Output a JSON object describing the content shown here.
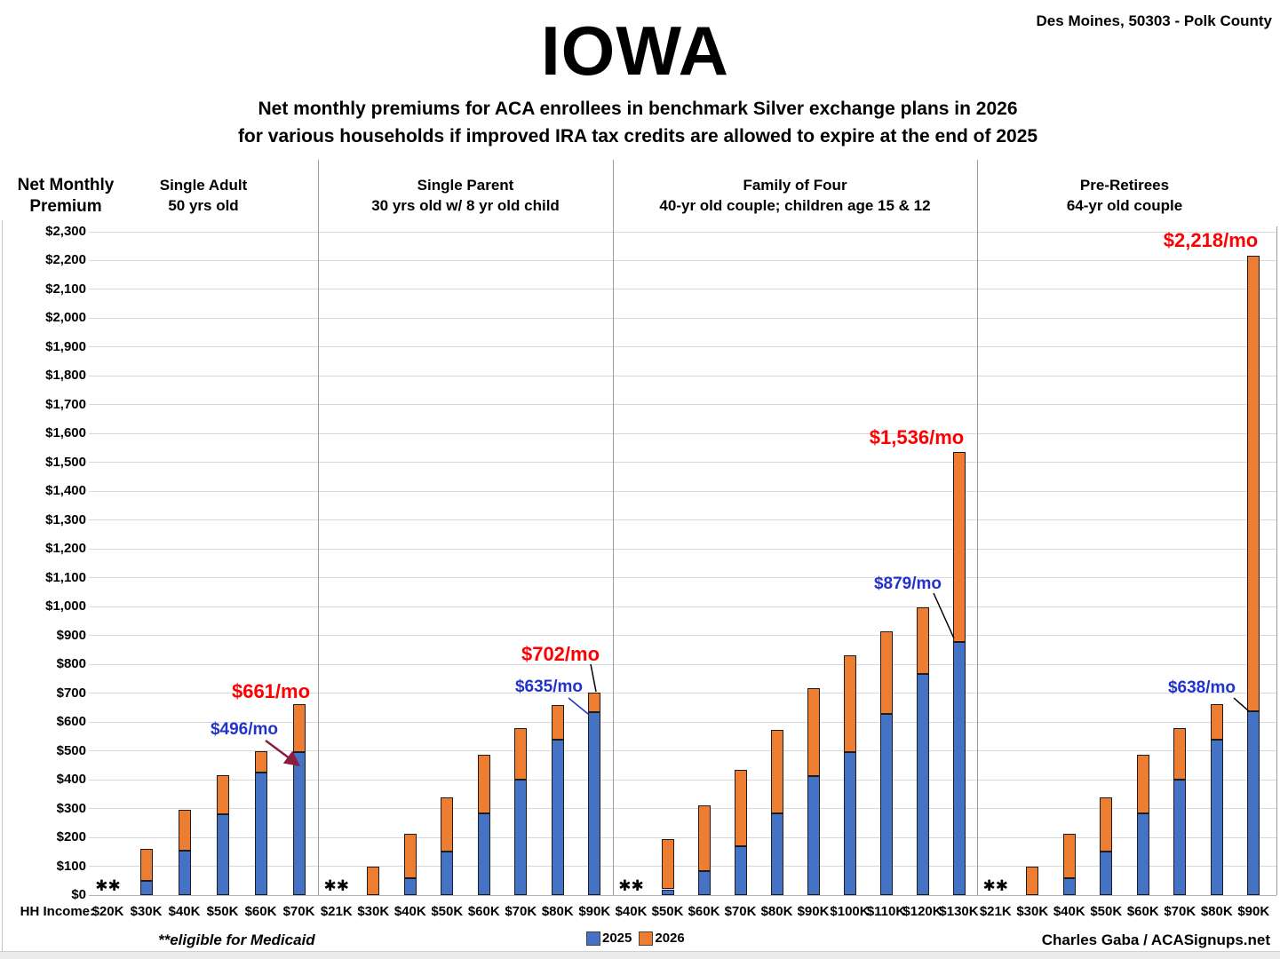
{
  "header": {
    "location": "Des Moines, 50303 - Polk County",
    "title": "IOWA",
    "subtitle_line1": "Net monthly premiums for ACA enrollees in benchmark Silver exchange plans in 2026",
    "subtitle_line2": "for various households if improved IRA tax credits are allowed to expire at the end of 2025"
  },
  "axis": {
    "y_header_line1": "Net Monthly",
    "y_header_line2": "Premium",
    "x_header": "HH Income:",
    "yticks": [
      "$0",
      "$100",
      "$200",
      "$300",
      "$400",
      "$500",
      "$600",
      "$700",
      "$800",
      "$900",
      "$1,000",
      "$1,100",
      "$1,200",
      "$1,300",
      "$1,400",
      "$1,500",
      "$1,600",
      "$1,700",
      "$1,800",
      "$1,900",
      "$2,000",
      "$2,100",
      "$2,200",
      "$2,300"
    ]
  },
  "footer": {
    "medicaid_note": "**eligible for Medicaid",
    "credit": "Charles Gaba / ACASignups.net"
  },
  "legend": [
    {
      "label": "2025",
      "color": "#4472C4"
    },
    {
      "label": "2026",
      "color": "#ED7D31"
    }
  ],
  "colors": {
    "bar_2025": "#4472C4",
    "bar_2026": "#ED7D31",
    "annotation_red": "#FF0000",
    "annotation_blue": "#2233CC",
    "gridline": "#D9D9D9",
    "divider": "#9B9B9B"
  },
  "chart_data": {
    "type": "bar",
    "stacked": true,
    "unit": "US$ per month",
    "ylabel": "Net Monthly Premium",
    "xlabel": "HH Income",
    "ylim": [
      0,
      2300
    ],
    "ytick_interval": 100,
    "grid": true,
    "legend_position": "bottom-center",
    "series_names": [
      "2025",
      "2026"
    ],
    "note": "values_2026_total are total bar heights; orange segment = 2026 total minus 2025 value",
    "medicaid_marker": "✱✱",
    "panels": [
      {
        "title_line1": "Single Adult",
        "title_line2": "50 yrs old",
        "categories": [
          "$20K",
          "$30K",
          "$40K",
          "$50K",
          "$60K",
          "$70K"
        ],
        "medicaid_eligible": [
          true,
          false,
          false,
          false,
          false,
          false
        ],
        "values_2025": [
          null,
          48,
          153,
          280,
          425,
          496
        ],
        "values_2026_total": [
          null,
          160,
          297,
          415,
          498,
          661
        ],
        "annotations": [
          {
            "text": "$661/mo",
            "kind": "red"
          },
          {
            "text": "$496/mo",
            "kind": "blue"
          }
        ]
      },
      {
        "title_line1": "Single Parent",
        "title_line2": "30 yrs old w/ 8 yr old child",
        "categories": [
          "$21K",
          "$30K",
          "$40K",
          "$50K",
          "$60K",
          "$70K",
          "$80K",
          "$90K"
        ],
        "medicaid_eligible": [
          true,
          false,
          false,
          false,
          false,
          false,
          false,
          false
        ],
        "values_2025": [
          null,
          0,
          57,
          150,
          283,
          400,
          540,
          635
        ],
        "values_2026_total": [
          null,
          100,
          212,
          340,
          485,
          580,
          660,
          702
        ],
        "annotations": [
          {
            "text": "$702/mo",
            "kind": "red"
          },
          {
            "text": "$635/mo",
            "kind": "blue"
          }
        ]
      },
      {
        "title_line1": "Family of Four",
        "title_line2": "40-yr old couple; children age 15 & 12",
        "categories": [
          "$40K",
          "$50K",
          "$60K",
          "$70K",
          "$80K",
          "$90K",
          "$100K",
          "$110K",
          "$120K",
          "$130K"
        ],
        "medicaid_eligible": [
          true,
          false,
          false,
          false,
          false,
          false,
          false,
          false,
          false,
          false
        ],
        "values_2025": [
          null,
          20,
          83,
          170,
          282,
          412,
          497,
          628,
          767,
          879
        ],
        "values_2026_total": [
          null,
          193,
          310,
          433,
          573,
          718,
          830,
          915,
          997,
          1536
        ],
        "annotations": [
          {
            "text": "$1,536/mo",
            "kind": "red"
          },
          {
            "text": "$879/mo",
            "kind": "blue"
          }
        ]
      },
      {
        "title_line1": "Pre-Retirees",
        "title_line2": "64-yr old couple",
        "categories": [
          "$21K",
          "$30K",
          "$40K",
          "$50K",
          "$60K",
          "$70K",
          "$80K",
          "$90K"
        ],
        "medicaid_eligible": [
          true,
          false,
          false,
          false,
          false,
          false,
          false,
          false
        ],
        "values_2025": [
          null,
          0,
          57,
          150,
          283,
          400,
          540,
          638
        ],
        "values_2026_total": [
          null,
          100,
          212,
          340,
          485,
          580,
          663,
          2218
        ],
        "annotations": [
          {
            "text": "$2,218/mo",
            "kind": "red"
          },
          {
            "text": "$638/mo",
            "kind": "blue"
          }
        ]
      }
    ]
  }
}
